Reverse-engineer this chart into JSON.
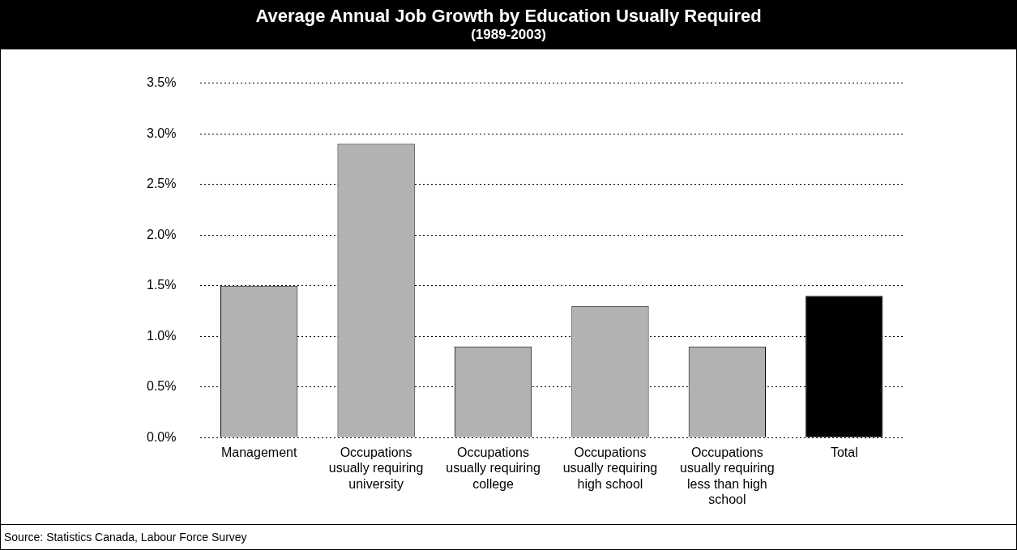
{
  "chart_data": {
    "type": "bar",
    "title": "Average Annual Job Growth by Education Usually Required",
    "subtitle": "(1989-2003)",
    "categories": [
      "Management",
      "Occupations usually requiring university",
      "Occupations usually requiring college",
      "Occupations usually requiring high school",
      "Occupations usually requiring less than high school",
      "Total"
    ],
    "values": [
      1.5,
      2.9,
      0.9,
      1.3,
      0.9,
      1.4
    ],
    "colors": [
      "#b2b2b2",
      "#b2b2b2",
      "#b2b2b2",
      "#b2b2b2",
      "#b2b2b2",
      "#000000"
    ],
    "ylim": [
      0,
      3.5
    ],
    "yticks": [
      {
        "value": 0,
        "label": "0.0%"
      },
      {
        "value": 0.5,
        "label": "0.5%"
      },
      {
        "value": 1,
        "label": "1.0%"
      },
      {
        "value": 1.5,
        "label": "1.5%"
      },
      {
        "value": 2,
        "label": "2.0%"
      },
      {
        "value": 2.5,
        "label": "2.5%"
      },
      {
        "value": 3,
        "label": "3.0%"
      },
      {
        "value": 3.5,
        "label": "3.5%"
      }
    ],
    "grid": "y",
    "legend": false,
    "annotations": [
      "Source: Statistics Canada, Labour Force Survey"
    ]
  }
}
